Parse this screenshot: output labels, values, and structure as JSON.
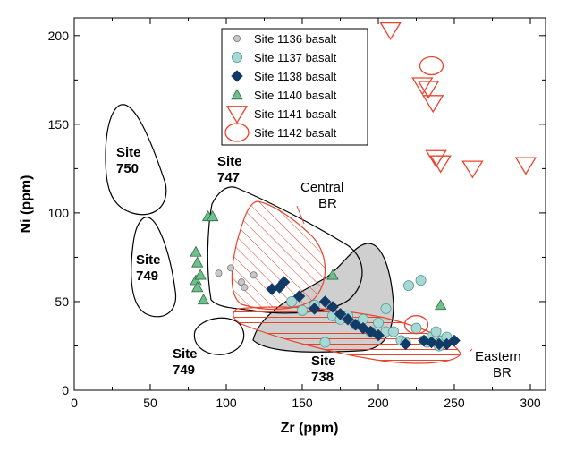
{
  "chart_data": {
    "type": "scatter",
    "xlabel": "Zr (ppm)",
    "ylabel": "Ni (ppm)",
    "xlim": [
      0,
      310
    ],
    "ylim": [
      0,
      210
    ],
    "xticks": [
      "0",
      "50",
      "100",
      "150",
      "200",
      "250",
      "300"
    ],
    "yticks": [
      "0",
      "50",
      "100",
      "150",
      "200"
    ],
    "legend": {
      "position": "top-center"
    },
    "series": [
      {
        "name": "Site 1136 basalt",
        "marker": "small-circle",
        "color": "#c8c8c8",
        "points": [
          [
            95,
            66
          ],
          [
            103,
            69
          ],
          [
            110,
            61
          ],
          [
            112,
            58
          ],
          [
            118,
            65
          ]
        ]
      },
      {
        "name": "Site 1137 basalt",
        "marker": "circle",
        "color": "#a8d8d4",
        "points": [
          [
            143,
            50
          ],
          [
            150,
            45
          ],
          [
            158,
            48
          ],
          [
            165,
            27
          ],
          [
            170,
            42
          ],
          [
            175,
            40
          ],
          [
            180,
            42
          ],
          [
            185,
            37
          ],
          [
            190,
            40
          ],
          [
            195,
            33
          ],
          [
            200,
            38
          ],
          [
            205,
            46
          ],
          [
            205,
            33
          ],
          [
            210,
            33
          ],
          [
            215,
            28
          ],
          [
            218,
            27
          ],
          [
            220,
            59
          ],
          [
            225,
            35
          ],
          [
            228,
            62
          ],
          [
            230,
            28
          ],
          [
            232,
            27
          ],
          [
            235,
            30
          ],
          [
            238,
            33
          ],
          [
            240,
            25
          ],
          [
            242,
            28
          ],
          [
            245,
            30
          ]
        ]
      },
      {
        "name": "Site 1138 basalt",
        "marker": "diamond",
        "color": "#123a66",
        "points": [
          [
            130,
            57
          ],
          [
            135,
            58
          ],
          [
            138,
            61
          ],
          [
            148,
            53
          ],
          [
            158,
            46
          ],
          [
            165,
            50
          ],
          [
            170,
            47
          ],
          [
            175,
            43
          ],
          [
            180,
            40
          ],
          [
            185,
            37
          ],
          [
            190,
            35
          ],
          [
            195,
            33
          ],
          [
            200,
            31
          ],
          [
            218,
            26
          ],
          [
            230,
            28
          ],
          [
            235,
            27
          ],
          [
            240,
            26
          ],
          [
            245,
            26
          ],
          [
            250,
            28
          ]
        ]
      },
      {
        "name": "Site 1140 basalt",
        "marker": "triangle-up",
        "color": "#6fc08c",
        "points": [
          [
            80,
            78
          ],
          [
            81,
            72
          ],
          [
            80,
            62
          ],
          [
            83,
            65
          ],
          [
            81,
            58
          ],
          [
            85,
            51
          ],
          [
            88,
            98
          ],
          [
            91,
            98
          ],
          [
            170,
            65
          ],
          [
            241,
            48
          ]
        ]
      },
      {
        "name": "Site 1141 basalt",
        "marker": "triangle-down",
        "color": "#e8432c",
        "points": [
          [
            208,
            203
          ],
          [
            229,
            172
          ],
          [
            233,
            170
          ],
          [
            236,
            162
          ],
          [
            238,
            131
          ],
          [
            241,
            128
          ],
          [
            262,
            125
          ],
          [
            297,
            127
          ]
        ]
      },
      {
        "name": "Site 1142 basalt",
        "marker": "ellipse",
        "color": "#e8432c",
        "points": [
          [
            235,
            183
          ],
          [
            225,
            37
          ]
        ]
      }
    ],
    "fields": [
      {
        "name": "Site 750",
        "label_lines": [
          "Site",
          "750"
        ],
        "style": "outline"
      },
      {
        "name": "Site 749",
        "label_lines": [
          "Site",
          "749"
        ],
        "style": "outline"
      },
      {
        "name": "Site 747",
        "label_lines": [
          "Site",
          "747"
        ],
        "style": "outline"
      },
      {
        "name": "Site 749 (low)",
        "label_lines": [
          "Site",
          "749"
        ],
        "style": "outline"
      },
      {
        "name": "Site 738",
        "label_lines": [
          "Site",
          "738"
        ],
        "style": "gray-fill"
      },
      {
        "name": "Central BR",
        "label_lines": [
          "Central",
          "BR"
        ],
        "style": "red-hatch"
      },
      {
        "name": "Eastern BR",
        "label_lines": [
          "Eastern",
          "BR"
        ],
        "style": "red-hatch"
      }
    ]
  }
}
